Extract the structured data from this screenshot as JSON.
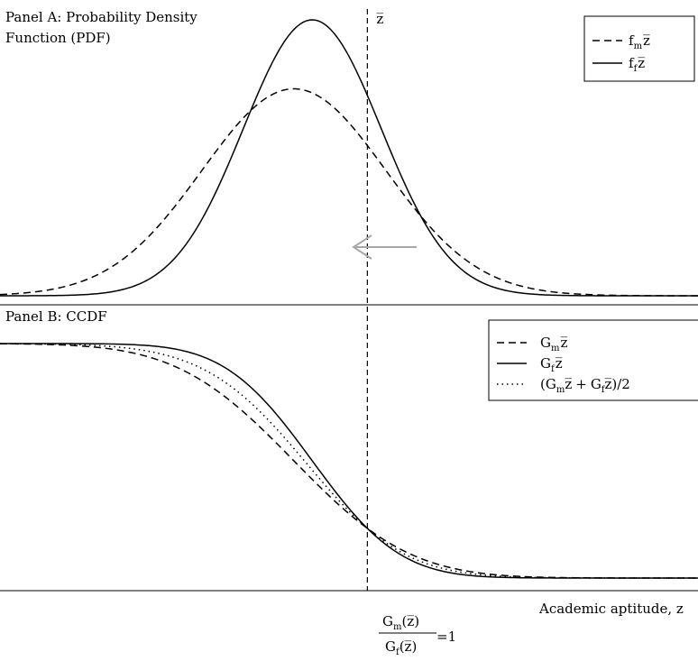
{
  "chart_data": [
    {
      "type": "line",
      "title": "Panel A: Probability Density Function (PDF)",
      "title_lines": [
        "Panel A: Probability Density",
        "Function (PDF)"
      ],
      "threshold_label": "z̅",
      "threshold_x": 0.8,
      "xlim": [
        -3.2,
        4.4
      ],
      "ylim": [
        0,
        0.6
      ],
      "series": [
        {
          "key": "f_m",
          "base": "f",
          "sub": "m",
          "style": "dashed",
          "mean": 0,
          "sd": 1
        },
        {
          "key": "f_f",
          "base": "f",
          "sub": "f",
          "style": "solid",
          "mean": 0.2,
          "sd": 0.75
        }
      ],
      "legend_position": "top-right",
      "arrow": {
        "direction": "left",
        "color": "#a8a8a8"
      }
    },
    {
      "type": "line",
      "title": "Panel B: CCDF",
      "xlabel": "Academic aptitude, z",
      "xlim": [
        -3.2,
        4.4
      ],
      "ylim": [
        0,
        1
      ],
      "series": [
        {
          "key": "G_m",
          "base": "G",
          "sub": "m",
          "style": "dashed",
          "mean": 0,
          "sd": 1
        },
        {
          "key": "G_f",
          "base": "G",
          "sub": "f",
          "style": "solid",
          "mean": 0.2,
          "sd": 0.75
        },
        {
          "key": "avg",
          "style": "dotted",
          "label_open": "(",
          "label_plus": "+",
          "label_close": ")/2"
        }
      ],
      "legend_position": "top-right",
      "annotation": {
        "numerator": "G",
        "numerator_sub": "m",
        "denominator": "G",
        "denominator_sub": "f",
        "arg": "(z̅)",
        "rhs": "=1"
      }
    }
  ]
}
